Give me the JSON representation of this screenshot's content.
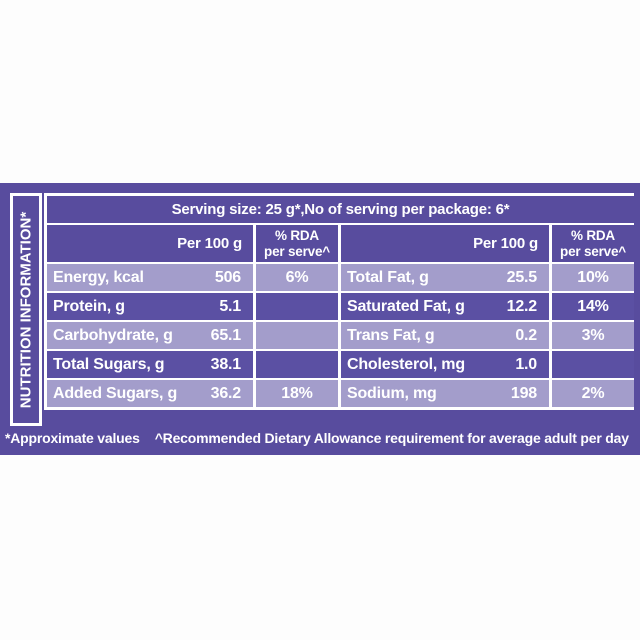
{
  "colors": {
    "band_purple": "#584C9E",
    "row_light_purple": "#A39DCB",
    "row_dark_purple": "#5B50A3",
    "border_white": "#FFFFFF",
    "page_background": "#FDFDFD"
  },
  "label": {
    "side_label": "NUTRITION INFORMATION*",
    "serving_line": "Serving size: 25 g*,No of serving per package: 6*",
    "col_header": {
      "per100": "Per 100 g",
      "rda_line1": "% RDA",
      "rda_line2": "per serve^"
    },
    "left_rows": [
      {
        "name": "Energy, kcal",
        "per100": "506",
        "rda": "6%"
      },
      {
        "name": "Protein, g",
        "per100": "5.1",
        "rda": ""
      },
      {
        "name": "Carbohydrate, g",
        "per100": "65.1",
        "rda": ""
      },
      {
        "name": "Total Sugars, g",
        "per100": "38.1",
        "rda": ""
      },
      {
        "name": "Added Sugars, g",
        "per100": "36.2",
        "rda": "18%"
      }
    ],
    "right_rows": [
      {
        "name": "Total Fat, g",
        "per100": "25.5",
        "rda": "10%"
      },
      {
        "name": "Saturated Fat, g",
        "per100": "12.2",
        "rda": "14%"
      },
      {
        "name": "Trans Fat, g",
        "per100": "0.2",
        "rda": "3%"
      },
      {
        "name": "Cholesterol, mg",
        "per100": "1.0",
        "rda": ""
      },
      {
        "name": "Sodium, mg",
        "per100": "198",
        "rda": "2%"
      }
    ],
    "footnotes": {
      "approx": "*Approximate values",
      "rda": "^Recommended Dietary Allowance requirement for average adult per day"
    }
  }
}
